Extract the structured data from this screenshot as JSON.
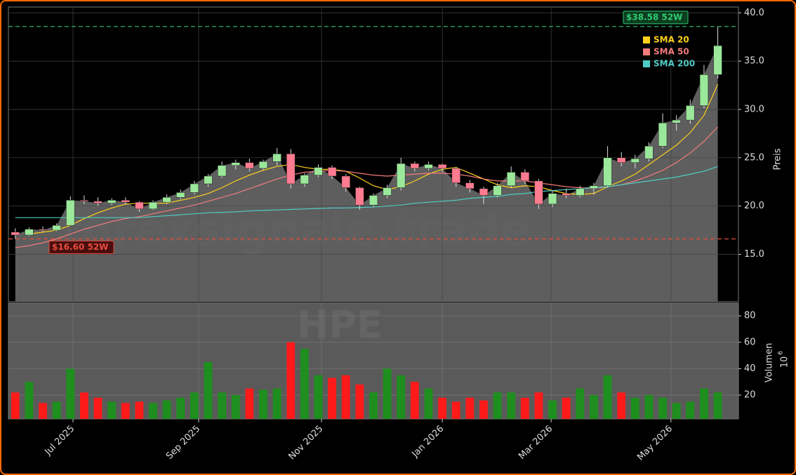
{
  "chart_data": {
    "type": "candlestick",
    "xlim": [
      -0.5,
      52.5
    ],
    "xticks": [
      {
        "value": 4.19,
        "label": "Jul 2025"
      },
      {
        "value": 13.31,
        "label": "Sep 2025"
      },
      {
        "value": 22.23,
        "label": "Nov 2025"
      },
      {
        "value": 31.0,
        "label": "Jan 2026"
      },
      {
        "value": 38.9,
        "label": "Mar 2026"
      },
      {
        "value": 47.6,
        "label": "May 2026"
      }
    ],
    "ylim": [
      10.1,
      40.6
    ],
    "yticks": [
      15.0,
      20.0,
      25.0,
      30.0,
      35.0,
      40.0
    ],
    "ylabel": "Preis",
    "grid": true,
    "open": [
      17.3,
      17.0,
      17.6,
      17.5,
      18.0,
      20.6,
      20.5,
      20.3,
      20.6,
      20.4,
      19.7,
      20.4,
      20.9,
      21.4,
      22.3,
      23.1,
      24.2,
      24.5,
      23.9,
      24.6,
      25.4,
      22.3,
      23.2,
      24.0,
      23.1,
      21.9,
      20.1,
      21.1,
      21.9,
      24.4,
      23.9,
      24.3,
      23.9,
      22.4,
      21.8,
      21.1,
      22.1,
      23.5,
      22.6,
      20.2,
      21.3,
      21.1,
      21.8,
      22.1,
      25.0,
      24.5,
      24.9,
      26.2,
      28.6,
      28.9,
      30.4,
      33.6
    ],
    "high": [
      17.7,
      17.8,
      17.9,
      18.2,
      21.0,
      21.1,
      20.9,
      20.8,
      20.9,
      20.5,
      20.6,
      21.2,
      21.7,
      22.6,
      23.3,
      24.6,
      24.8,
      24.9,
      24.8,
      26.0,
      25.9,
      23.4,
      24.3,
      24.2,
      23.3,
      22.0,
      21.3,
      22.2,
      25.0,
      24.6,
      24.6,
      24.4,
      24.0,
      22.7,
      22.0,
      22.4,
      24.1,
      23.8,
      22.8,
      21.6,
      21.8,
      22.1,
      22.4,
      26.2,
      25.6,
      25.3,
      26.6,
      29.6,
      29.4,
      31.0,
      34.6,
      38.58
    ],
    "low": [
      16.6,
      16.9,
      17.3,
      17.4,
      18.0,
      20.2,
      20.0,
      20.1,
      20.2,
      19.4,
      19.6,
      20.2,
      20.7,
      21.2,
      22.0,
      22.9,
      23.8,
      23.6,
      23.7,
      24.2,
      21.8,
      22.0,
      23.0,
      22.8,
      21.5,
      19.6,
      19.9,
      20.8,
      21.6,
      23.6,
      23.7,
      23.5,
      22.0,
      21.4,
      20.2,
      20.9,
      21.9,
      22.3,
      19.7,
      19.9,
      20.8,
      20.9,
      21.2,
      21.9,
      24.1,
      23.9,
      24.6,
      26.0,
      27.8,
      28.5,
      30.1,
      33.2
    ],
    "close": [
      17.0,
      17.6,
      17.5,
      18.0,
      20.6,
      20.5,
      20.3,
      20.6,
      20.4,
      19.7,
      20.4,
      20.9,
      21.4,
      22.3,
      23.1,
      24.2,
      24.5,
      23.9,
      24.6,
      25.4,
      22.3,
      23.2,
      24.0,
      23.1,
      21.9,
      20.1,
      21.1,
      21.9,
      24.4,
      23.9,
      24.3,
      23.9,
      22.4,
      21.8,
      21.1,
      22.1,
      23.5,
      22.6,
      20.2,
      21.3,
      21.1,
      21.8,
      22.1,
      25.0,
      24.5,
      24.9,
      26.2,
      28.6,
      28.9,
      30.4,
      33.6,
      36.6
    ],
    "up_color": "#9be89b",
    "down_color": "#ff7b8f",
    "area_color": "#5e5e5e",
    "series": [
      {
        "name": "SMA 20",
        "color": "#ffd11a",
        "values": [
          null,
          17.1,
          17.3,
          17.5,
          18.0,
          18.7,
          19.3,
          19.8,
          20.2,
          20.3,
          20.3,
          20.3,
          20.6,
          20.9,
          21.3,
          21.9,
          22.6,
          23.2,
          23.7,
          24.1,
          24.3,
          24.0,
          23.8,
          23.8,
          23.6,
          22.9,
          22.1,
          21.7,
          22.0,
          22.6,
          23.3,
          23.8,
          24.0,
          23.4,
          22.8,
          22.2,
          21.9,
          22.1,
          22.0,
          21.6,
          21.3,
          21.2,
          21.3,
          22.0,
          22.6,
          23.3,
          24.3,
          25.3,
          26.3,
          27.6,
          29.4,
          32.6
        ]
      },
      {
        "name": "SMA 50",
        "color": "#f27b7b",
        "values": [
          15.7,
          15.9,
          16.2,
          16.6,
          17.1,
          17.6,
          18.0,
          18.4,
          18.7,
          18.9,
          19.2,
          19.5,
          19.8,
          20.1,
          20.5,
          20.9,
          21.3,
          21.8,
          22.3,
          22.8,
          23.2,
          23.5,
          23.6,
          23.7,
          23.6,
          23.4,
          23.2,
          23.1,
          23.2,
          23.3,
          23.4,
          23.4,
          23.3,
          23.1,
          22.8,
          22.6,
          22.6,
          22.6,
          22.4,
          22.2,
          22.0,
          21.9,
          21.8,
          22.0,
          22.2,
          22.6,
          23.1,
          23.7,
          24.5,
          25.5,
          26.7,
          28.2
        ]
      },
      {
        "name": "SMA 200",
        "color": "#4ecdc4",
        "values": [
          18.8,
          18.8,
          18.8,
          18.8,
          18.8,
          18.8,
          18.8,
          18.8,
          18.8,
          18.8,
          18.9,
          19.0,
          19.1,
          19.2,
          19.3,
          19.35,
          19.4,
          19.5,
          19.55,
          19.6,
          19.65,
          19.7,
          19.75,
          19.8,
          19.8,
          19.85,
          19.9,
          20.0,
          20.1,
          20.3,
          20.4,
          20.5,
          20.6,
          20.8,
          20.9,
          21.0,
          21.2,
          21.3,
          21.5,
          21.6,
          21.7,
          21.8,
          21.9,
          22.0,
          22.2,
          22.4,
          22.6,
          22.8,
          23.0,
          23.3,
          23.6,
          24.1
        ]
      }
    ],
    "hlines": [
      {
        "value": 38.58,
        "label": "$38.58 52W",
        "color": "#2ecc71"
      },
      {
        "value": 16.6,
        "label": "$16.60 52W",
        "color": "#e74c3c"
      }
    ],
    "watermark": "forexsignale.trade",
    "symbol": "HPE",
    "volume": {
      "ylabel": "Volumen",
      "unit_base": "10",
      "unit_exp": "6",
      "ylim": [
        2,
        89.6
      ],
      "yticks": [
        20,
        40,
        60,
        80
      ],
      "up_color": "#1e8f1e",
      "down_color": "#ff1a1a",
      "values": [
        22,
        30,
        14,
        15,
        40,
        22,
        18,
        15,
        14,
        15,
        14,
        16,
        18,
        22,
        45,
        22,
        20,
        25,
        24,
        25,
        60,
        55,
        35,
        33,
        35,
        28,
        22,
        40,
        35,
        30,
        25,
        18,
        15,
        18,
        16,
        22,
        22,
        18,
        22,
        16,
        18,
        25,
        20,
        35,
        22,
        18,
        20,
        18,
        14,
        15,
        25,
        22
      ]
    }
  }
}
